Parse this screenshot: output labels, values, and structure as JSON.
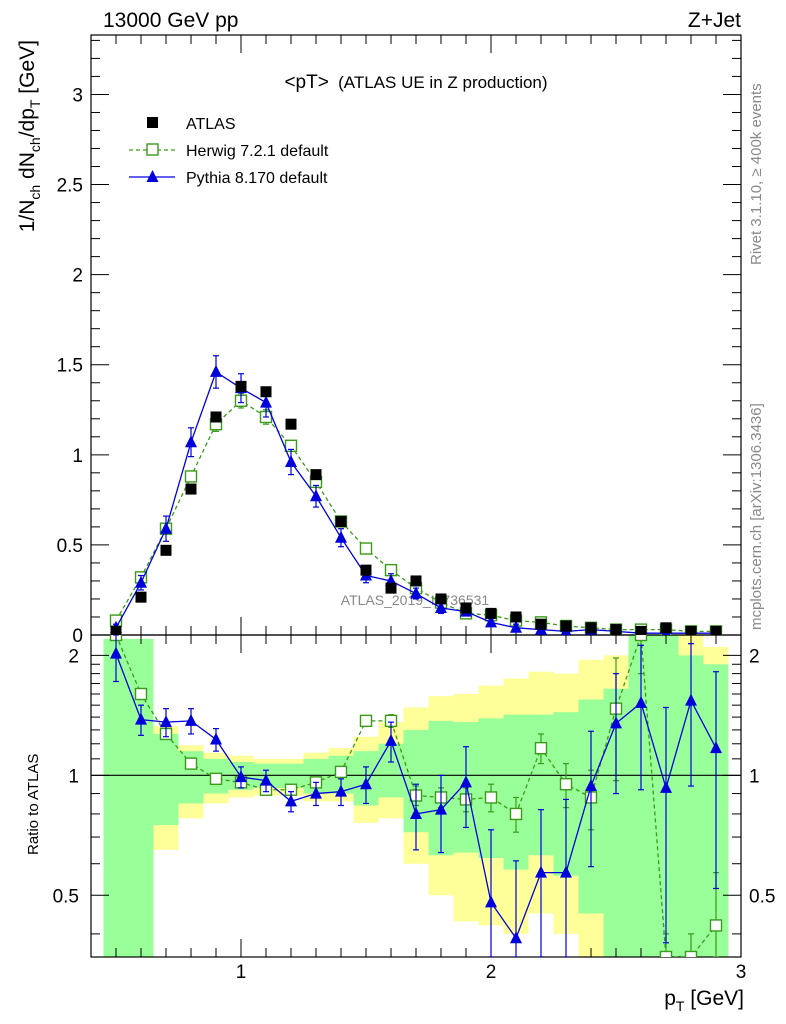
{
  "header": {
    "left": "13000 GeV pp",
    "right": "Z+Jet"
  },
  "side_labels": {
    "rivet": "Rivet 3.1.10, ≥ 400k events",
    "mcplots": "mcplots.cern.ch [arXiv:1306.3436]"
  },
  "watermark": "ATLAS_2019_I1736531",
  "colors": {
    "atlas": "#000000",
    "herwig": "#3a9a1a",
    "pythia": "#0000dd",
    "band_inner": "#99ff99",
    "band_outer": "#ffff99"
  },
  "chart_data": [
    {
      "type": "scatter",
      "title": "<pT>",
      "subtitle": "(ATLAS UE in Z production)",
      "ylabel": "1/N_ch dN_ch/dp_T [GeV]",
      "xlim": [
        0.4,
        3.0
      ],
      "ylim": [
        0,
        3.33
      ],
      "yticks": [
        0,
        0.5,
        1,
        1.5,
        2,
        2.5,
        3
      ],
      "ytick_labels": [
        "0",
        "0.5",
        "1",
        "1.5",
        "2",
        "2.5",
        "3"
      ],
      "legend": [
        "ATLAS",
        "Herwig 7.2.1 default",
        "Pythia 8.170 default"
      ],
      "legend_position": "top-left",
      "x": [
        0.5,
        0.6,
        0.7,
        0.8,
        0.9,
        1.0,
        1.1,
        1.2,
        1.3,
        1.4,
        1.5,
        1.6,
        1.7,
        1.8,
        1.9,
        2.0,
        2.1,
        2.2,
        2.3,
        2.4,
        2.5,
        2.6,
        2.7,
        2.8,
        2.9
      ],
      "series": [
        {
          "name": "ATLAS",
          "values": [
            0.02,
            0.21,
            0.47,
            0.81,
            1.21,
            1.38,
            1.35,
            1.17,
            0.89,
            0.63,
            0.36,
            0.26,
            0.3,
            0.2,
            0.15,
            0.12,
            0.1,
            0.06,
            0.05,
            0.04,
            0.03,
            0.02,
            0.04,
            0.02,
            0.02
          ],
          "errors": [
            0,
            0,
            0,
            0,
            0,
            0,
            0,
            0,
            0,
            0,
            0,
            0,
            0,
            0,
            0,
            0,
            0,
            0,
            0,
            0,
            0,
            0,
            0,
            0,
            0
          ]
        },
        {
          "name": "Herwig 7.2.1 default",
          "values": [
            0.08,
            0.32,
            0.59,
            0.88,
            1.17,
            1.3,
            1.21,
            1.05,
            0.85,
            0.63,
            0.48,
            0.36,
            0.26,
            0.18,
            0.12,
            0.11,
            0.08,
            0.07,
            0.05,
            0.04,
            0.03,
            0.03,
            0.03,
            0.02,
            0.02
          ],
          "errors": [
            0.01,
            0.02,
            0.03,
            0.03,
            0.04,
            0.04,
            0.04,
            0.03,
            0.03,
            0.03,
            0.02,
            0.02,
            0.02,
            0.01,
            0.01,
            0.01,
            0.01,
            0.01,
            0.01,
            0.01,
            0.01,
            0.01,
            0.01,
            0.01,
            0.01
          ]
        },
        {
          "name": "Pythia 8.170 default",
          "values": [
            0.04,
            0.29,
            0.59,
            1.07,
            1.46,
            1.37,
            1.29,
            0.96,
            0.77,
            0.54,
            0.33,
            0.3,
            0.23,
            0.15,
            0.13,
            0.07,
            0.04,
            0.03,
            0.02,
            0.03,
            0.02,
            0.01,
            0.01,
            0.01,
            0.01
          ],
          "errors": [
            0.02,
            0.04,
            0.07,
            0.08,
            0.09,
            0.08,
            0.08,
            0.07,
            0.06,
            0.05,
            0.04,
            0.04,
            0.03,
            0.03,
            0.02,
            0.02,
            0.02,
            0.01,
            0.01,
            0.01,
            0.01,
            0.01,
            0.01,
            0.01,
            0.01
          ]
        }
      ]
    },
    {
      "type": "line",
      "ylabel": "Ratio to ATLAS",
      "xlabel": "p_T [GeV]",
      "xlim": [
        0.4,
        3.0
      ],
      "ylim": [
        0.35,
        2.25
      ],
      "yticks": [
        0.5,
        1,
        2
      ],
      "ytick_labels": [
        "0.5",
        "1",
        "2"
      ],
      "xticks": [
        1,
        2,
        3
      ],
      "xtick_labels": [
        "1",
        "2",
        "3"
      ],
      "reference_line": 1,
      "bin_edges": [
        0.45,
        0.55,
        0.65,
        0.75,
        0.85,
        0.95,
        1.05,
        1.15,
        1.25,
        1.35,
        1.45,
        1.55,
        1.65,
        1.75,
        1.85,
        1.95,
        2.05,
        2.15,
        2.25,
        2.35,
        2.45,
        2.55,
        2.65,
        2.75,
        2.85,
        2.95
      ],
      "band_inner": {
        "lo": [
          0.0,
          0.0,
          0.75,
          0.85,
          0.9,
          0.92,
          0.93,
          0.93,
          0.9,
          0.9,
          0.84,
          0.88,
          0.72,
          0.63,
          0.64,
          0.62,
          0.58,
          0.63,
          0.56,
          0.45,
          0.35,
          0.0,
          0.0,
          0.0,
          0.0
        ],
        "hi": [
          2.2,
          2.2,
          1.27,
          1.15,
          1.1,
          1.08,
          1.07,
          1.07,
          1.1,
          1.12,
          1.15,
          1.2,
          1.3,
          1.37,
          1.36,
          1.39,
          1.42,
          1.42,
          1.44,
          1.55,
          1.65,
          2.25,
          2.25,
          2.0,
          1.9
        ]
      },
      "band_outer": {
        "lo": [
          0.0,
          0.58,
          0.65,
          0.78,
          0.85,
          0.88,
          0.89,
          0.89,
          0.86,
          0.86,
          0.76,
          0.78,
          0.6,
          0.5,
          0.43,
          0.42,
          0.4,
          0.45,
          0.4,
          0.35,
          0.0,
          0.0,
          0.0,
          0.0,
          0.0
        ],
        "hi": [
          2.2,
          2.2,
          1.33,
          1.19,
          1.14,
          1.12,
          1.1,
          1.1,
          1.14,
          1.17,
          1.25,
          1.36,
          1.48,
          1.58,
          1.6,
          1.68,
          1.75,
          1.82,
          1.8,
          1.95,
          2.0,
          2.25,
          2.25,
          2.25,
          2.1
        ]
      },
      "x": [
        0.5,
        0.6,
        0.7,
        0.8,
        0.9,
        1.0,
        1.1,
        1.2,
        1.3,
        1.4,
        1.5,
        1.6,
        1.7,
        1.8,
        1.9,
        2.0,
        2.1,
        2.2,
        2.3,
        2.4,
        2.5,
        2.6,
        2.7,
        2.8,
        2.9
      ],
      "series": [
        {
          "name": "Herwig 7.2.1 default",
          "values": [
            2.3,
            1.6,
            1.27,
            1.07,
            0.98,
            0.96,
            0.92,
            0.92,
            0.96,
            1.02,
            1.37,
            1.37,
            0.89,
            0.88,
            0.87,
            0.88,
            0.8,
            1.17,
            0.95,
            0.88,
            1.47,
            2.3,
            0.2,
            0.2,
            0.42
          ],
          "errors": [
            0.05,
            0.04,
            0.03,
            0.03,
            0.02,
            0.02,
            0.02,
            0.02,
            0.02,
            0.03,
            0.04,
            0.05,
            0.05,
            0.05,
            0.06,
            0.07,
            0.08,
            0.1,
            0.12,
            0.15,
            0.5,
            0.5,
            0.2,
            0.2,
            0.15
          ]
        },
        {
          "name": "Pythia 8.170 default",
          "values": [
            2.02,
            1.38,
            1.36,
            1.37,
            1.23,
            0.99,
            0.97,
            0.86,
            0.9,
            0.91,
            0.95,
            1.22,
            0.8,
            0.82,
            0.96,
            0.48,
            0.39,
            0.57,
            0.57,
            0.94,
            1.35,
            1.52,
            0.93,
            1.54,
            1.17
          ],
          "errors": [
            0.3,
            0.12,
            0.11,
            0.1,
            0.08,
            0.06,
            0.06,
            0.05,
            0.06,
            0.07,
            0.1,
            0.14,
            0.15,
            0.18,
            0.22,
            0.25,
            0.22,
            0.25,
            0.3,
            0.35,
            0.45,
            0.6,
            0.55,
            0.6,
            0.65
          ]
        }
      ]
    }
  ]
}
